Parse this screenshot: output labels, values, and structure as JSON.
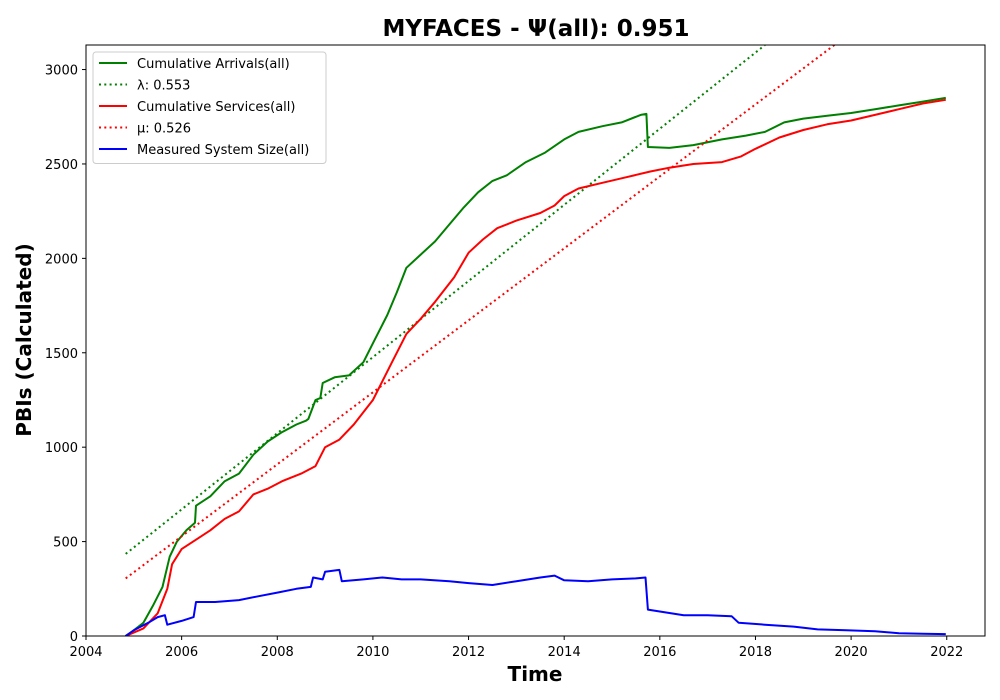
{
  "chart_data": {
    "type": "line",
    "title": "MYFACES -  Ψ(all): 0.951",
    "xlabel": "Time",
    "ylabel": "PBIs (Calculated)",
    "xlim": [
      2004,
      2022.8
    ],
    "ylim": [
      0,
      3130
    ],
    "x_ticks": [
      "2004",
      "2006",
      "2008",
      "2010",
      "2012",
      "2014",
      "2016",
      "2018",
      "2020",
      "2022"
    ],
    "y_ticks": [
      "0",
      "500",
      "1000",
      "1500",
      "2000",
      "2500",
      "3000"
    ],
    "grid": false,
    "legend_position": "upper-left",
    "series": [
      {
        "name": "Cumulative Arrivals(all)",
        "color": "#008000",
        "style": "solid",
        "points": [
          [
            2004.83,
            0
          ],
          [
            2005.0,
            30
          ],
          [
            2005.2,
            70
          ],
          [
            2005.4,
            160
          ],
          [
            2005.6,
            260
          ],
          [
            2005.75,
            420
          ],
          [
            2005.9,
            500
          ],
          [
            2006.1,
            560
          ],
          [
            2006.28,
            600
          ],
          [
            2006.3,
            690
          ],
          [
            2006.6,
            740
          ],
          [
            2006.9,
            820
          ],
          [
            2007.2,
            860
          ],
          [
            2007.5,
            960
          ],
          [
            2007.8,
            1030
          ],
          [
            2008.1,
            1080
          ],
          [
            2008.4,
            1120
          ],
          [
            2008.6,
            1140
          ],
          [
            2008.65,
            1150
          ],
          [
            2008.8,
            1250
          ],
          [
            2008.9,
            1260
          ],
          [
            2008.95,
            1340
          ],
          [
            2009.2,
            1370
          ],
          [
            2009.5,
            1380
          ],
          [
            2009.8,
            1450
          ],
          [
            2010.0,
            1550
          ],
          [
            2010.3,
            1700
          ],
          [
            2010.5,
            1820
          ],
          [
            2010.7,
            1950
          ],
          [
            2011.0,
            2020
          ],
          [
            2011.3,
            2090
          ],
          [
            2011.6,
            2180
          ],
          [
            2011.9,
            2270
          ],
          [
            2012.2,
            2350
          ],
          [
            2012.5,
            2410
          ],
          [
            2012.8,
            2440
          ],
          [
            2013.2,
            2510
          ],
          [
            2013.6,
            2560
          ],
          [
            2014.0,
            2630
          ],
          [
            2014.3,
            2670
          ],
          [
            2014.8,
            2700
          ],
          [
            2015.2,
            2720
          ],
          [
            2015.6,
            2760
          ],
          [
            2015.72,
            2765
          ],
          [
            2015.75,
            2590
          ],
          [
            2016.2,
            2585
          ],
          [
            2016.7,
            2600
          ],
          [
            2017.3,
            2630
          ],
          [
            2017.8,
            2650
          ],
          [
            2018.2,
            2670
          ],
          [
            2018.6,
            2720
          ],
          [
            2019.0,
            2740
          ],
          [
            2019.5,
            2755
          ],
          [
            2020.0,
            2770
          ],
          [
            2020.5,
            2790
          ],
          [
            2021.0,
            2810
          ],
          [
            2021.5,
            2830
          ],
          [
            2021.98,
            2850
          ]
        ]
      },
      {
        "name": "λ: 0.553",
        "color": "#008000",
        "style": "dotted",
        "points": [
          [
            2004.83,
            435
          ],
          [
            2018.2,
            3130
          ]
        ]
      },
      {
        "name": "Cumulative Services(all)",
        "color": "#ff0000",
        "style": "solid",
        "points": [
          [
            2004.83,
            0
          ],
          [
            2005.2,
            40
          ],
          [
            2005.5,
            120
          ],
          [
            2005.7,
            250
          ],
          [
            2005.8,
            380
          ],
          [
            2006.0,
            460
          ],
          [
            2006.3,
            510
          ],
          [
            2006.6,
            560
          ],
          [
            2006.9,
            620
          ],
          [
            2007.2,
            660
          ],
          [
            2007.5,
            750
          ],
          [
            2007.8,
            780
          ],
          [
            2008.1,
            820
          ],
          [
            2008.5,
            860
          ],
          [
            2008.8,
            900
          ],
          [
            2009.0,
            1000
          ],
          [
            2009.3,
            1040
          ],
          [
            2009.6,
            1120
          ],
          [
            2010.0,
            1250
          ],
          [
            2010.4,
            1450
          ],
          [
            2010.7,
            1600
          ],
          [
            2011.0,
            1680
          ],
          [
            2011.3,
            1770
          ],
          [
            2011.7,
            1900
          ],
          [
            2012.0,
            2030
          ],
          [
            2012.3,
            2100
          ],
          [
            2012.6,
            2160
          ],
          [
            2013.0,
            2200
          ],
          [
            2013.5,
            2240
          ],
          [
            2013.8,
            2280
          ],
          [
            2014.0,
            2330
          ],
          [
            2014.3,
            2370
          ],
          [
            2014.8,
            2400
          ],
          [
            2015.3,
            2430
          ],
          [
            2015.8,
            2460
          ],
          [
            2016.2,
            2480
          ],
          [
            2016.7,
            2500
          ],
          [
            2017.3,
            2510
          ],
          [
            2017.7,
            2540
          ],
          [
            2018.0,
            2580
          ],
          [
            2018.5,
            2640
          ],
          [
            2019.0,
            2680
          ],
          [
            2019.5,
            2710
          ],
          [
            2020.0,
            2730
          ],
          [
            2020.5,
            2760
          ],
          [
            2021.0,
            2790
          ],
          [
            2021.5,
            2820
          ],
          [
            2021.98,
            2840
          ]
        ]
      },
      {
        "name": "μ: 0.526",
        "color": "#ff0000",
        "style": "dotted",
        "points": [
          [
            2004.83,
            305
          ],
          [
            2019.65,
            3130
          ]
        ]
      },
      {
        "name": "Measured System Size(all)",
        "color": "#0000ff",
        "style": "solid",
        "points": [
          [
            2004.83,
            0
          ],
          [
            2005.0,
            30
          ],
          [
            2005.3,
            70
          ],
          [
            2005.5,
            100
          ],
          [
            2005.65,
            110
          ],
          [
            2005.7,
            60
          ],
          [
            2006.0,
            80
          ],
          [
            2006.25,
            100
          ],
          [
            2006.3,
            180
          ],
          [
            2006.7,
            180
          ],
          [
            2007.2,
            190
          ],
          [
            2007.6,
            210
          ],
          [
            2008.0,
            230
          ],
          [
            2008.4,
            250
          ],
          [
            2008.7,
            260
          ],
          [
            2008.75,
            310
          ],
          [
            2008.95,
            300
          ],
          [
            2009.0,
            340
          ],
          [
            2009.3,
            350
          ],
          [
            2009.35,
            290
          ],
          [
            2009.8,
            300
          ],
          [
            2010.2,
            310
          ],
          [
            2010.6,
            300
          ],
          [
            2011.0,
            300
          ],
          [
            2011.6,
            290
          ],
          [
            2012.0,
            280
          ],
          [
            2012.5,
            270
          ],
          [
            2013.0,
            290
          ],
          [
            2013.5,
            310
          ],
          [
            2013.8,
            320
          ],
          [
            2014.0,
            295
          ],
          [
            2014.5,
            290
          ],
          [
            2015.0,
            300
          ],
          [
            2015.5,
            305
          ],
          [
            2015.7,
            310
          ],
          [
            2015.75,
            140
          ],
          [
            2016.0,
            130
          ],
          [
            2016.5,
            110
          ],
          [
            2017.0,
            110
          ],
          [
            2017.5,
            105
          ],
          [
            2017.65,
            70
          ],
          [
            2018.2,
            60
          ],
          [
            2018.8,
            50
          ],
          [
            2019.3,
            35
          ],
          [
            2019.9,
            30
          ],
          [
            2020.5,
            25
          ],
          [
            2021.0,
            15
          ],
          [
            2021.5,
            12
          ],
          [
            2021.98,
            10
          ]
        ]
      }
    ]
  }
}
